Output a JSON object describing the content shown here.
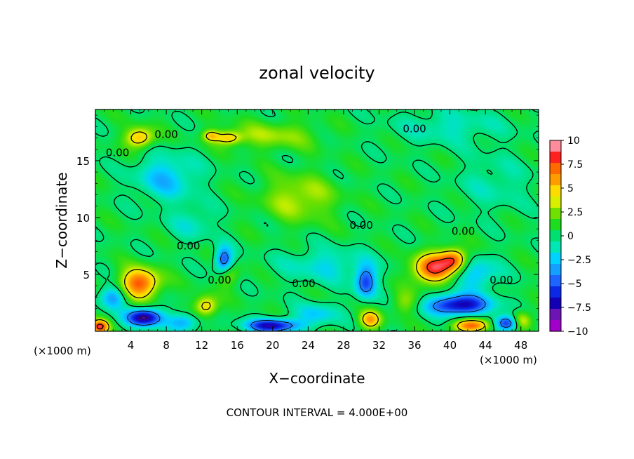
{
  "chart_data": {
    "type": "heatmap",
    "title": "zonal velocity",
    "xlabel": "X−coordinate",
    "ylabel": "Z−coordinate",
    "x_unit_left": "(×1000 m)",
    "x_unit_right": "(×1000 m)",
    "xlim": [
      0,
      50
    ],
    "ylim": [
      0,
      19.5
    ],
    "xticks": [
      4,
      8,
      12,
      16,
      20,
      24,
      28,
      32,
      36,
      40,
      44,
      48
    ],
    "yticks": [
      5,
      10,
      15
    ],
    "footer": "CONTOUR INTERVAL = 4.000E+00",
    "contour_label": "0.00",
    "colorbar": {
      "ticks": [
        "10",
        "7.5",
        "5",
        "2.5",
        "0",
        "−2.5",
        "−5",
        "−7.5",
        "−10"
      ],
      "range": [
        -10,
        10
      ],
      "colors": [
        "#ff8c9c",
        "#ff2020",
        "#ff6a00",
        "#ff9c00",
        "#ffdc00",
        "#d8f000",
        "#70e000",
        "#1edc1e",
        "#00e070",
        "#00e6b4",
        "#00d2ff",
        "#14a0ff",
        "#1e64ff",
        "#0a28e6",
        "#1400b4",
        "#6e14b4",
        "#a000c8"
      ]
    },
    "background_value": 0.5,
    "features": [
      {
        "x": 5,
        "z": 4.2,
        "u": 7.5,
        "sx": 2.2,
        "sz": 1.3
      },
      {
        "x": 5,
        "z": 17.0,
        "u": 5.5,
        "sx": 1.6,
        "sz": 0.9
      },
      {
        "x": 13,
        "z": 17.2,
        "u": 4.0,
        "sx": 0.9,
        "sz": 0.5
      },
      {
        "x": 15,
        "z": 17.0,
        "u": 4.5,
        "sx": 1.5,
        "sz": 0.6
      },
      {
        "x": 23,
        "z": 11.7,
        "u": 3.0,
        "sx": 4.0,
        "sz": 2.0
      },
      {
        "x": 20,
        "z": 17.2,
        "u": 2.5,
        "sx": 5.0,
        "sz": 1.2
      },
      {
        "x": 12.5,
        "z": 2.2,
        "u": 5.0,
        "sx": 1.3,
        "sz": 0.9
      },
      {
        "x": 38,
        "z": 5.5,
        "u": 8.0,
        "sx": 2.2,
        "sz": 1.3
      },
      {
        "x": 40.5,
        "z": 6.3,
        "u": 7.0,
        "sx": 1.5,
        "sz": 1.0
      },
      {
        "x": 31,
        "z": 1.0,
        "u": 5.5,
        "sx": 1.2,
        "sz": 0.8
      },
      {
        "x": 42.5,
        "z": 0.5,
        "u": 7.5,
        "sx": 2.0,
        "sz": 0.6
      },
      {
        "x": 48,
        "z": 0.9,
        "u": 5.5,
        "sx": 1.2,
        "sz": 0.8
      },
      {
        "x": 0.5,
        "z": 0.4,
        "u": 8.0,
        "sx": 1.0,
        "sz": 0.6
      },
      {
        "x": 15,
        "z": 5.0,
        "u": 3.0,
        "sx": 1.2,
        "sz": 1.0
      },
      {
        "x": 35,
        "z": 2.5,
        "u": 2.5,
        "sx": 1.5,
        "sz": 1.0
      },
      {
        "x": 5.5,
        "z": 1.2,
        "u": -9.0,
        "sx": 2.0,
        "sz": 0.8
      },
      {
        "x": 14.5,
        "z": 6.2,
        "u": -6.5,
        "sx": 1.0,
        "sz": 1.2
      },
      {
        "x": 20,
        "z": 0.5,
        "u": -8.0,
        "sx": 3.0,
        "sz": 0.6
      },
      {
        "x": 30.5,
        "z": 4.3,
        "u": -6.0,
        "sx": 1.2,
        "sz": 1.4
      },
      {
        "x": 41,
        "z": 2.3,
        "u": -8.5,
        "sx": 3.5,
        "sz": 0.9
      },
      {
        "x": 46.5,
        "z": 0.7,
        "u": -8.0,
        "sx": 1.5,
        "sz": 0.7
      },
      {
        "x": 43,
        "z": 5.0,
        "u": -3.5,
        "sx": 2.5,
        "sz": 1.5
      },
      {
        "x": 8,
        "z": 13.5,
        "u": -3.5,
        "sx": 3.5,
        "sz": 2.0
      },
      {
        "x": 11,
        "z": 9.5,
        "u": -2.0,
        "sx": 2.5,
        "sz": 1.5
      },
      {
        "x": 26,
        "z": 5.8,
        "u": -2.5,
        "sx": 5.0,
        "sz": 1.5
      },
      {
        "x": 2,
        "z": 3.0,
        "u": -4.5,
        "sx": 1.5,
        "sz": 1.0
      },
      {
        "x": 10,
        "z": 0.8,
        "u": -4.0,
        "sx": 1.8,
        "sz": 0.8
      },
      {
        "x": 25,
        "z": 1.5,
        "u": -3.0,
        "sx": 2.5,
        "sz": 1.0
      },
      {
        "x": 40,
        "z": 18.0,
        "u": -2.0,
        "sx": 6.0,
        "sz": 1.5
      },
      {
        "x": 45,
        "z": 13.0,
        "u": -1.5,
        "sx": 4.0,
        "sz": 2.5
      }
    ]
  }
}
